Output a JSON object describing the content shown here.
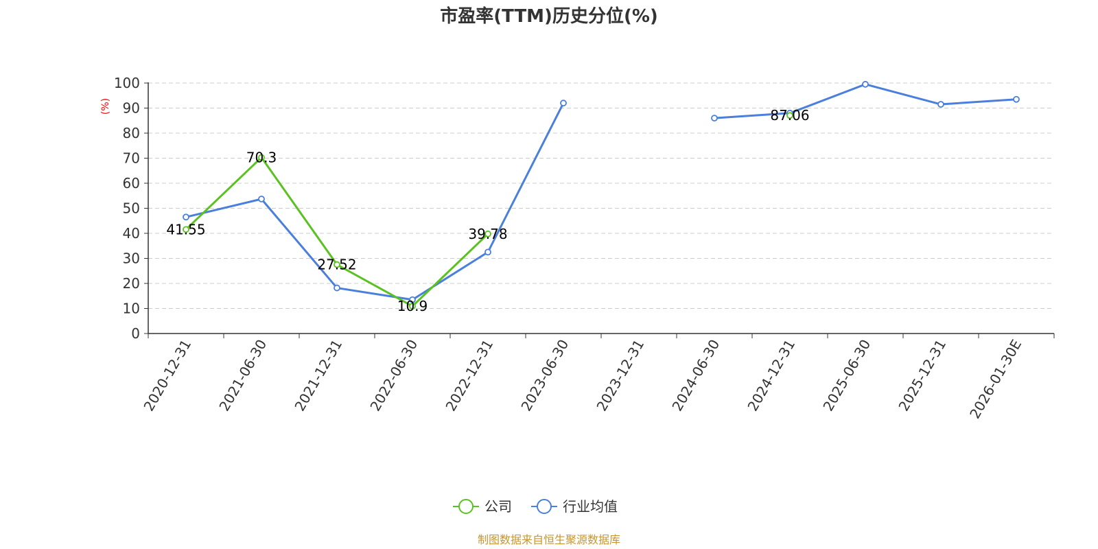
{
  "chart_data": {
    "type": "line",
    "title": "市盈率(TTM)历史分位(%)",
    "ylabel": "(%)",
    "ylim": [
      0,
      100
    ],
    "yticks": [
      0,
      10,
      20,
      30,
      40,
      50,
      60,
      70,
      80,
      90,
      100
    ],
    "grid": true,
    "legend_position": "bottom",
    "categories": [
      "2020-12-31",
      "2021-06-30",
      "2021-12-31",
      "2022-06-30",
      "2022-12-31",
      "2023-06-30",
      "2023-12-31",
      "2024-06-30",
      "2024-12-31",
      "2025-06-30",
      "2025-12-31",
      "2026-01-30E"
    ],
    "series": [
      {
        "name": "公司",
        "color": "#5ac21f",
        "values": [
          41.55,
          70.3,
          27.52,
          10.9,
          39.78,
          null,
          null,
          null,
          87.06,
          null,
          null,
          null
        ],
        "labels": [
          "41.55",
          "70.3",
          "27.52",
          "10.9",
          "39.78",
          "",
          "",
          "",
          "87.06",
          "",
          "",
          ""
        ]
      },
      {
        "name": "行业均值",
        "color": "#4a7fdc",
        "values": [
          46.5,
          53.7,
          18.2,
          13.5,
          32.5,
          92,
          null,
          86,
          88,
          99.5,
          91.5,
          93.5
        ]
      }
    ],
    "source": "制图数据来自恒生聚源数据库",
    "source_color": "#c8952e",
    "unit_color": "#ff0000"
  }
}
